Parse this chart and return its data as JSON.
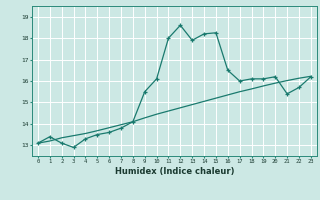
{
  "title": "",
  "xlabel": "Humidex (Indice chaleur)",
  "bg_color": "#cce8e4",
  "grid_color": "#ffffff",
  "line_color": "#1a7a6e",
  "xlim": [
    -0.5,
    23.5
  ],
  "ylim": [
    12.5,
    19.5
  ],
  "xticks": [
    0,
    1,
    2,
    3,
    4,
    5,
    6,
    7,
    8,
    9,
    10,
    11,
    12,
    13,
    14,
    15,
    16,
    17,
    18,
    19,
    20,
    21,
    22,
    23
  ],
  "yticks": [
    13,
    14,
    15,
    16,
    17,
    18,
    19
  ],
  "line1_x": [
    0,
    1,
    2,
    3,
    4,
    5,
    6,
    7,
    8,
    9,
    10,
    11,
    12,
    13,
    14,
    15,
    16,
    17,
    18,
    19,
    20,
    21,
    22,
    23
  ],
  "line1_y": [
    13.1,
    13.4,
    13.1,
    12.9,
    13.3,
    13.5,
    13.6,
    13.8,
    14.1,
    15.5,
    16.1,
    18.0,
    18.6,
    17.9,
    18.2,
    18.25,
    16.5,
    16.0,
    16.1,
    16.1,
    16.2,
    15.4,
    15.7,
    16.2
  ],
  "line2_x": [
    0,
    1,
    2,
    3,
    4,
    5,
    6,
    7,
    8,
    9,
    10,
    11,
    12,
    13,
    14,
    15,
    16,
    17,
    18,
    19,
    20,
    21,
    22,
    23
  ],
  "line2_y": [
    13.1,
    13.2,
    13.35,
    13.45,
    13.55,
    13.68,
    13.82,
    13.96,
    14.1,
    14.28,
    14.45,
    14.6,
    14.75,
    14.9,
    15.05,
    15.2,
    15.35,
    15.5,
    15.63,
    15.77,
    15.9,
    16.02,
    16.13,
    16.22
  ]
}
